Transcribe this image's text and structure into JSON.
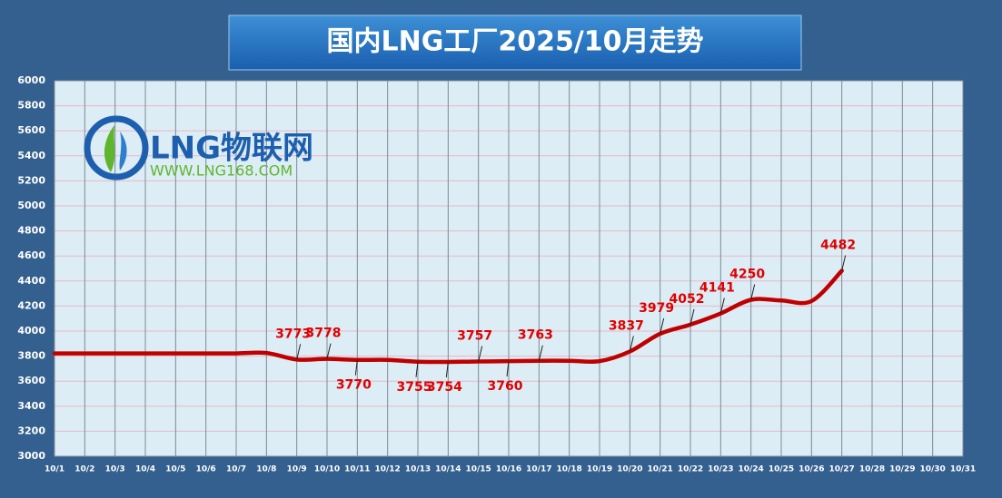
{
  "chart_data": {
    "type": "line",
    "title": "国内LNG工厂2025/10月走势",
    "logo": {
      "name": "LNG物联网",
      "url": "WWW.LNG168.COM"
    },
    "categories": [
      "10/1",
      "10/2",
      "10/3",
      "10/4",
      "10/5",
      "10/6",
      "10/7",
      "10/8",
      "10/9",
      "10/10",
      "10/11",
      "10/12",
      "10/13",
      "10/14",
      "10/15",
      "10/16",
      "10/17",
      "10/18",
      "10/19",
      "10/20",
      "10/21",
      "10/22",
      "10/23",
      "10/24",
      "10/25",
      "10/26",
      "10/27",
      "10/28",
      "10/29",
      "10/30",
      "10/31"
    ],
    "series": [
      {
        "name": "LNG",
        "color": "#c00000",
        "values": [
          3822,
          3822,
          3822,
          3822,
          3822,
          3822,
          3822,
          3825,
          3773,
          3778,
          3770,
          3770,
          3755,
          3754,
          3757,
          3760,
          3763,
          3763,
          3760,
          3837,
          3979,
          4052,
          4141,
          4250,
          4245,
          4240,
          4482,
          null,
          null,
          null,
          null
        ],
        "value_labels": [
          null,
          null,
          null,
          null,
          null,
          null,
          null,
          null,
          "3773",
          "3778",
          "3770",
          null,
          "3755",
          "3754",
          "3757",
          "3760",
          "3763",
          null,
          null,
          "3837",
          "3979",
          "4052",
          "4141",
          "4250",
          null,
          null,
          "4482",
          null,
          null,
          null,
          null
        ]
      }
    ],
    "ylim": [
      3000,
      6000
    ],
    "yticks": [
      3000,
      3200,
      3400,
      3600,
      3800,
      4000,
      4200,
      4400,
      4600,
      4800,
      5000,
      5200,
      5400,
      5600,
      5800,
      6000
    ],
    "grid": true
  }
}
